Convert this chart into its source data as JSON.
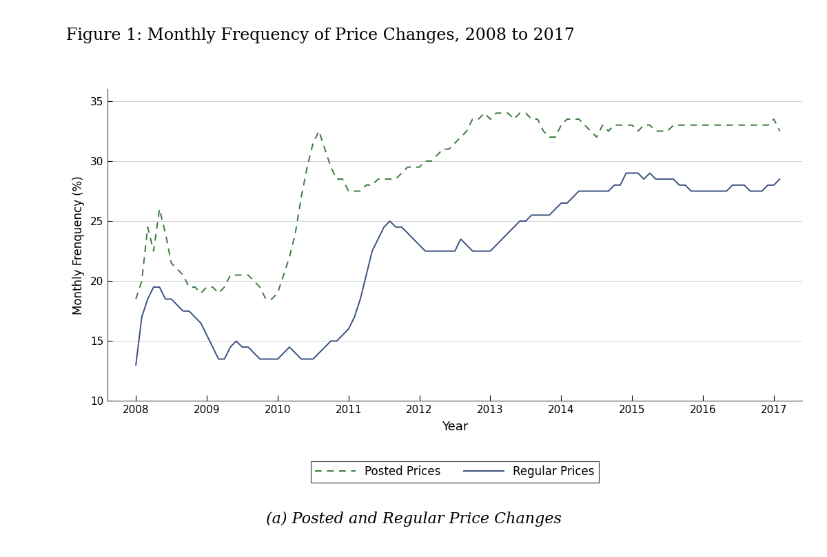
{
  "title": "Figure 1: Monthly Frequency of Price Changes, 2008 to 2017",
  "subtitle": "(a) Posted and Regular Price Changes",
  "xlabel": "Year",
  "ylabel": "Monthly Frenquency (%)",
  "ylim": [
    10,
    36
  ],
  "yticks": [
    10,
    15,
    20,
    25,
    30,
    35
  ],
  "xtick_labels": [
    "2008",
    "2009",
    "2010",
    "2011",
    "2012",
    "2013",
    "2014",
    "2015",
    "2016",
    "2017"
  ],
  "legend_labels": [
    "Posted Prices",
    "Regular Prices"
  ],
  "posted_color": "#3a7a3a",
  "regular_color": "#3a5080",
  "background_color": "#ffffff",
  "posted_prices": [
    18.5,
    20.0,
    24.5,
    22.5,
    26.0,
    24.0,
    21.5,
    21.0,
    20.5,
    19.5,
    19.5,
    19.0,
    19.5,
    19.5,
    19.0,
    19.5,
    20.5,
    20.5,
    20.5,
    20.5,
    20.0,
    19.5,
    18.5,
    18.5,
    19.0,
    20.5,
    22.0,
    24.0,
    27.0,
    29.5,
    31.5,
    32.5,
    31.0,
    29.5,
    28.5,
    28.5,
    27.5,
    27.5,
    27.5,
    28.0,
    28.0,
    28.5,
    28.5,
    28.5,
    28.5,
    29.0,
    29.5,
    29.5,
    29.5,
    30.0,
    30.0,
    30.5,
    31.0,
    31.0,
    31.5,
    32.0,
    32.5,
    33.5,
    33.5,
    34.0,
    33.5,
    34.0,
    34.0,
    34.0,
    33.5,
    34.0,
    34.0,
    33.5,
    33.5,
    32.5,
    32.0,
    32.0,
    33.0,
    33.5,
    33.5,
    33.5,
    33.0,
    32.5,
    32.0,
    33.0,
    32.5,
    33.0,
    33.0,
    33.0,
    33.0,
    32.5,
    33.0,
    33.0,
    32.5,
    32.5,
    32.5,
    33.0,
    33.0,
    33.0,
    33.0,
    33.0,
    33.0,
    33.0,
    33.0,
    33.0,
    33.0,
    33.0,
    33.0,
    33.0,
    33.0,
    33.0,
    33.0,
    33.0,
    33.5,
    32.5
  ],
  "regular_prices": [
    13.0,
    17.0,
    18.5,
    19.5,
    19.5,
    18.5,
    18.5,
    18.0,
    17.5,
    17.5,
    17.0,
    16.5,
    15.5,
    14.5,
    13.5,
    13.5,
    14.5,
    15.0,
    14.5,
    14.5,
    14.0,
    13.5,
    13.5,
    13.5,
    13.5,
    14.0,
    14.5,
    14.0,
    13.5,
    13.5,
    13.5,
    14.0,
    14.5,
    15.0,
    15.0,
    15.5,
    16.0,
    17.0,
    18.5,
    20.5,
    22.5,
    23.5,
    24.5,
    25.0,
    24.5,
    24.5,
    24.0,
    23.5,
    23.0,
    22.5,
    22.5,
    22.5,
    22.5,
    22.5,
    22.5,
    23.5,
    23.0,
    22.5,
    22.5,
    22.5,
    22.5,
    23.0,
    23.5,
    24.0,
    24.5,
    25.0,
    25.0,
    25.5,
    25.5,
    25.5,
    25.5,
    26.0,
    26.5,
    26.5,
    27.0,
    27.5,
    27.5,
    27.5,
    27.5,
    27.5,
    27.5,
    28.0,
    28.0,
    29.0,
    29.0,
    29.0,
    28.5,
    29.0,
    28.5,
    28.5,
    28.5,
    28.5,
    28.0,
    28.0,
    27.5,
    27.5,
    27.5,
    27.5,
    27.5,
    27.5,
    27.5,
    28.0,
    28.0,
    28.0,
    27.5,
    27.5,
    27.5,
    28.0,
    28.0,
    28.5
  ]
}
